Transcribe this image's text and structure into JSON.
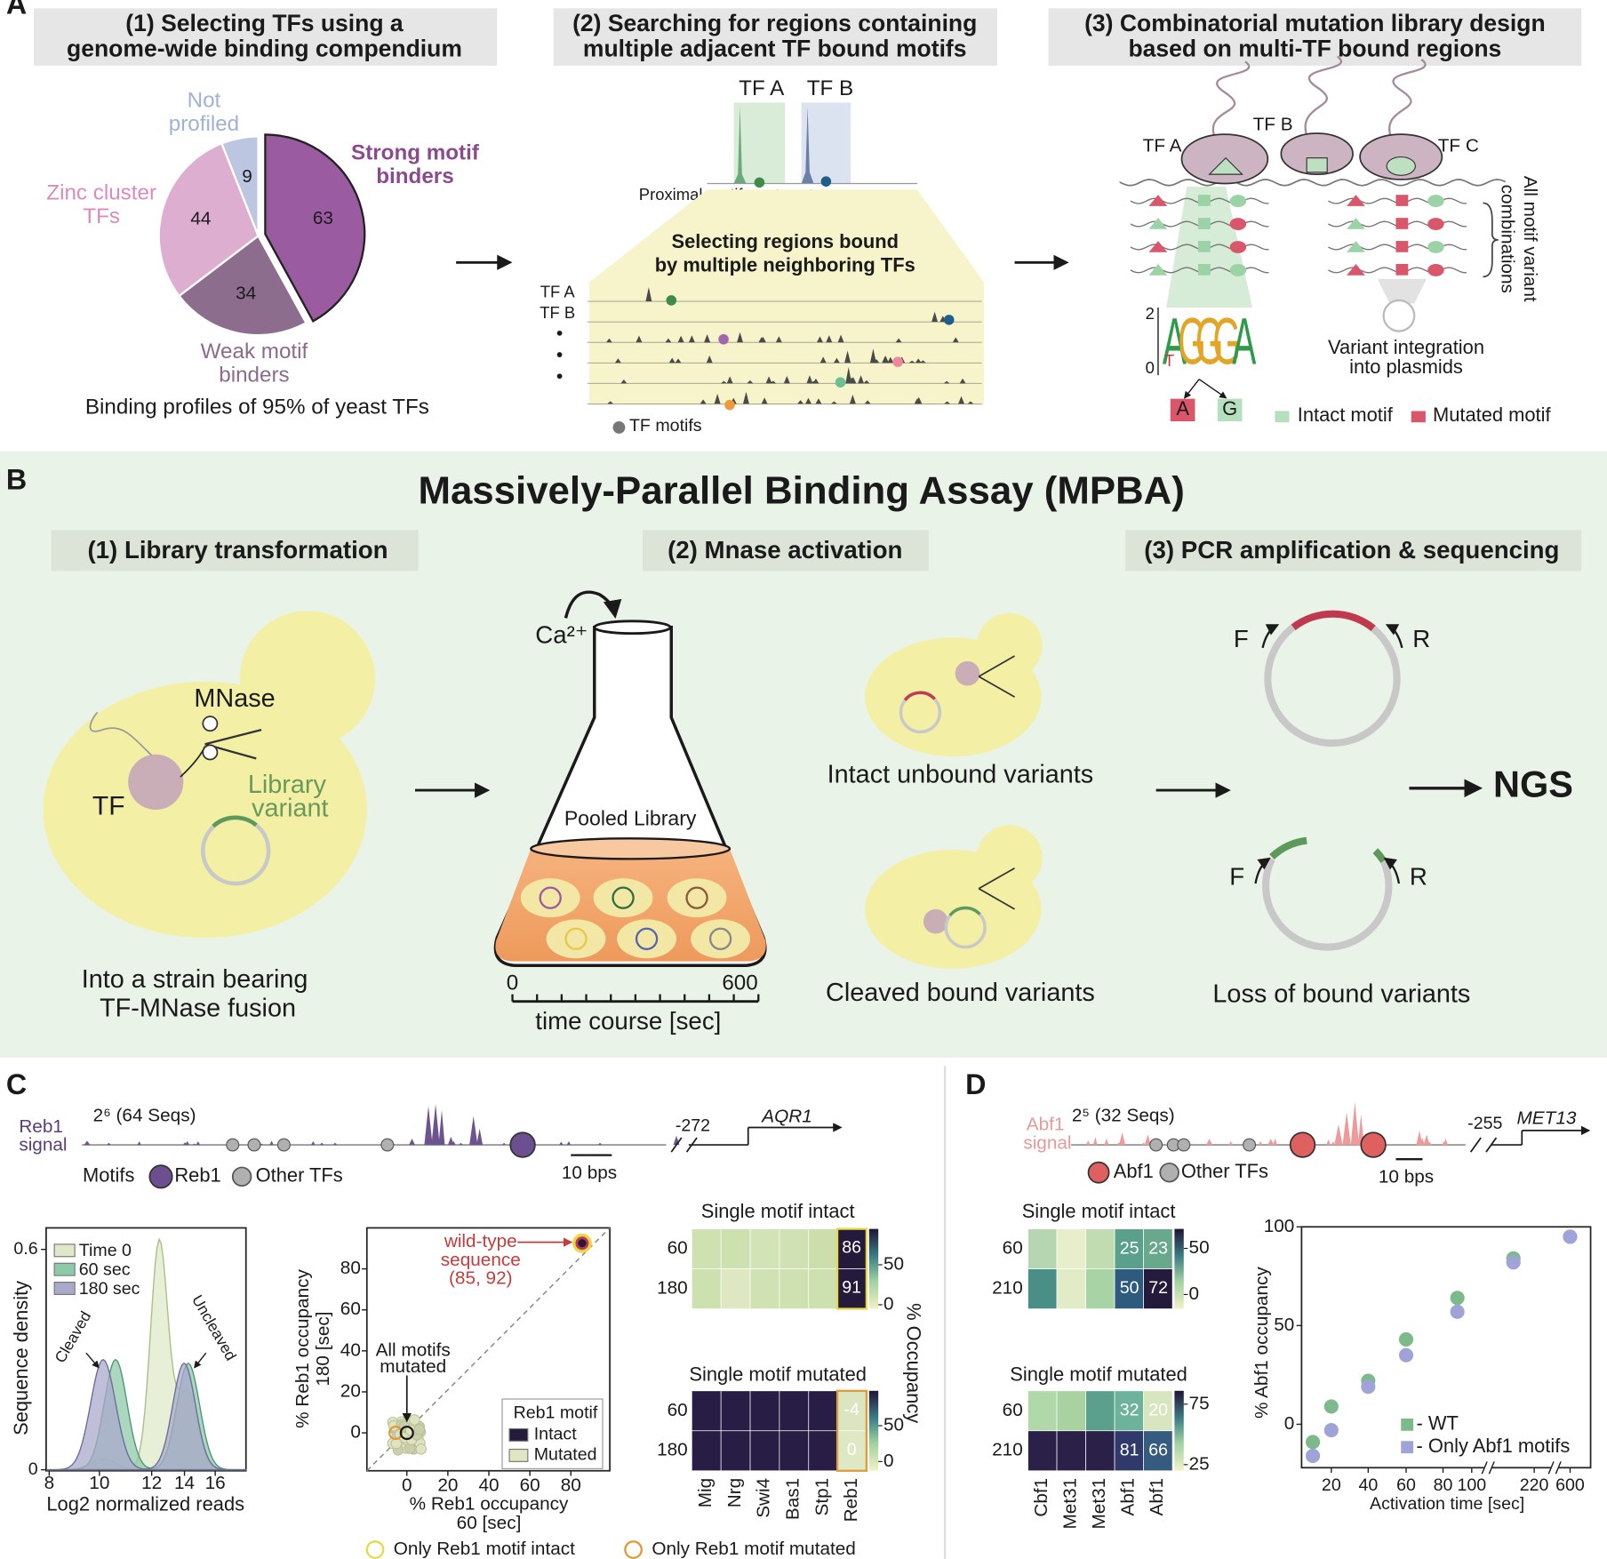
{
  "panel_labels": [
    "A",
    "B",
    "C",
    "D"
  ],
  "panel_a": {
    "headers": [
      [
        "(1) Selecting TFs using a",
        "genome-wide binding compendium"
      ],
      [
        "(2) Searching for regions containing",
        "multiple adjacent TF bound motifs"
      ],
      [
        "(3) Combinatorial mutation library design",
        "based on multi-TF bound regions"
      ]
    ],
    "pie": {
      "slices": [
        {
          "label": [
            "Strong motif",
            "binders"
          ],
          "value": 63,
          "color": "#9b5ba1"
        },
        {
          "label": [
            "Weak motif",
            "binders"
          ],
          "value": 34,
          "color": "#8d6d8e"
        },
        {
          "label": [
            "Zinc cluster",
            "TFs"
          ],
          "value": 44,
          "color": "#ddaecf"
        },
        {
          "label": [
            "Not",
            "profiled"
          ],
          "value": 9,
          "color": "#bcc6e0"
        }
      ],
      "caption": "Binding profiles of 95% of yeast TFs"
    },
    "regions": {
      "top_tfs": [
        "TF A",
        "TF B"
      ],
      "proximal": "Proximal motifs",
      "title": [
        "Selecting regions bound",
        "by multiple neighboring TFs"
      ],
      "tracks": [
        "TF A",
        "TF B"
      ],
      "legend": "TF motifs"
    },
    "library": {
      "tfs": [
        "TF A",
        "TF B",
        "TF C"
      ],
      "combinations": [
        "All motif variant",
        "combinations"
      ],
      "logo_ticks": [
        "2",
        "0"
      ],
      "logo": [
        "A",
        "G",
        "G",
        "G",
        "A"
      ],
      "logo_minor": "T",
      "variants": [
        "A",
        "G"
      ],
      "integration": [
        "Variant integration",
        "into plasmids"
      ],
      "legend": [
        "Intact motif",
        "Mutated motif"
      ]
    }
  },
  "panel_b": {
    "title": "Massively-Parallel Binding Assay (MPBA)",
    "steps": [
      "(1) Library transformation",
      "(2) Mnase activation",
      "(3) PCR amplification & sequencing"
    ],
    "cell": {
      "mnase": "MNase",
      "tf": "TF",
      "library": [
        "Library",
        "variant"
      ],
      "caption": [
        "Into a strain bearing",
        "TF-MNase fusion"
      ]
    },
    "flask": {
      "ion": "Ca²⁺",
      "label": "Pooled Library",
      "time_start": "0",
      "time_end": "600",
      "axis": "time course [sec]"
    },
    "variants": [
      "Intact unbound variants",
      "Cleaved bound variants"
    ],
    "primers": [
      "F",
      "R",
      "F",
      "R"
    ],
    "loss": "Loss of bound variants",
    "output": "NGS"
  },
  "panel_c": {
    "signal": [
      "Reb1",
      "signal"
    ],
    "library": "2⁶ (64 Seqs)",
    "position": "-272",
    "gene": "AQR1",
    "scale": "10 bps",
    "motifs": [
      "Motifs",
      "Reb1",
      "Other TFs"
    ],
    "density": {
      "legend": [
        "Time 0",
        "60 sec",
        "180 sec"
      ],
      "ylabel": "Sequence density",
      "yticks": [
        "0.6",
        "0"
      ],
      "xticks": [
        "8",
        "10",
        "12",
        "14",
        "16"
      ],
      "xlabel": "Log2 normalized reads",
      "annotations": [
        "Cleaved",
        "Uncleaved"
      ]
    },
    "scatter": {
      "ylabel": [
        "% Reb1 occupancy",
        "180 [sec]"
      ],
      "yticks": [
        "80",
        "60",
        "40",
        "20",
        "0"
      ],
      "xticks": [
        "0",
        "20",
        "40",
        "60",
        "80"
      ],
      "xlabel": [
        "% Reb1 occupancy",
        "60 [sec]"
      ],
      "wild_type": [
        "wild-type",
        "sequence",
        "(85, 92)"
      ],
      "all_mutated": [
        "All motifs",
        "mutated"
      ],
      "legend_title": "Reb1 motif",
      "legend": [
        "Intact",
        "Mutated"
      ],
      "bottom_legend": [
        "Only Reb1 motif intact",
        "Only Reb1 motif mutated"
      ]
    },
    "heatmaps": {
      "titles": [
        "Single motif intact",
        "Single motif mutated"
      ],
      "rows": [
        "60",
        "180"
      ],
      "intact_values": [
        "86",
        "91"
      ],
      "mutated_values": [
        "-4",
        "0"
      ],
      "intact_colorbar": [
        "50",
        "0"
      ],
      "mutated_colorbar": [
        "50",
        "0"
      ],
      "colorbar_label": "% Occupancy",
      "columns": [
        "Mig",
        "Nrg",
        "Swi4",
        "Bas1",
        "Stp1",
        "Reb1"
      ]
    }
  },
  "panel_d": {
    "signal": [
      "Abf1",
      "signal"
    ],
    "library": "2⁵ (32 Seqs)",
    "position": "-255",
    "gene": "MET13",
    "scale": "10 bps",
    "motifs": [
      "Abf1",
      "Other TFs"
    ],
    "heatmaps": {
      "titles": [
        "Single motif intact",
        "Single motif mutated"
      ],
      "rows": [
        "60",
        "210"
      ],
      "intact_values": [
        [
          "25",
          "23"
        ],
        [
          "50",
          "72"
        ]
      ],
      "mutated_values": [
        [
          "32",
          "20"
        ],
        [
          "81",
          "66"
        ]
      ],
      "intact_colorbar": [
        "50",
        "0"
      ],
      "mutated_colorbar": [
        "75",
        "25"
      ],
      "columns": [
        "Cbf1",
        "Met31",
        "Met31",
        "Abf1",
        "Abf1"
      ]
    },
    "scatter": {
      "x": [
        10,
        20,
        40,
        60,
        90,
        180,
        600
      ],
      "series": [
        {
          "name": "- WT",
          "color": "#7dba8b",
          "values": [
            -9,
            9,
            22,
            43,
            64,
            84,
            95
          ]
        },
        {
          "name": "- Only Abf1 motifs",
          "color": "#a0a3d8",
          "values": [
            -16,
            -3,
            19,
            35,
            57,
            82,
            95
          ]
        }
      ],
      "ylim": [
        -22,
        100
      ],
      "yticks": [
        0,
        50,
        100
      ],
      "xticks": [
        20,
        40,
        60,
        80,
        100,
        220,
        600
      ],
      "ylabel": "% Abf1 occupancy",
      "xlabel": "Activation time [sec]"
    }
  }
}
